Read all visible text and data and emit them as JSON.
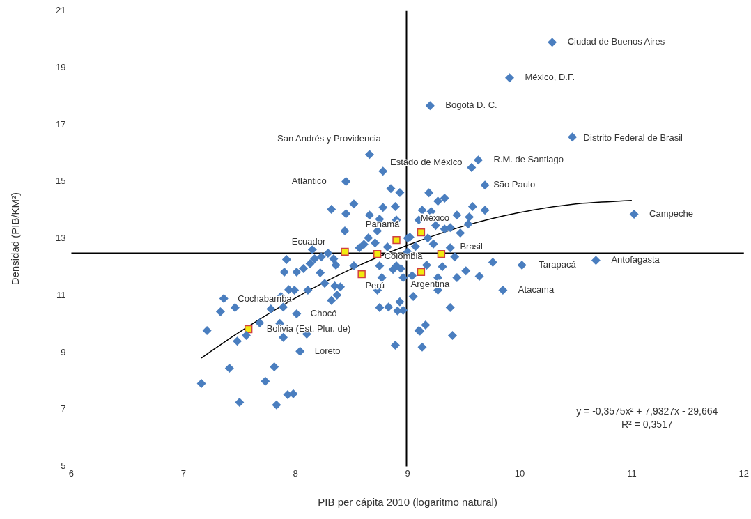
{
  "chart_data": {
    "type": "scatter",
    "xlabel": "PIB per cápita 2010 (logaritmo natural)",
    "ylabel": "Densidad (PIB/KM²)",
    "xlim": [
      6,
      12
    ],
    "xticks": [
      6,
      7,
      8,
      9,
      10,
      11,
      12
    ],
    "ylim": [
      5,
      21
    ],
    "yticks": [
      5,
      7,
      9,
      11,
      13,
      15,
      17,
      19,
      21
    ],
    "grid": false,
    "legend": false,
    "series": [
      {
        "type": "scatter",
        "marker": "diamond",
        "color": "#4a7ebf",
        "x": [
          10.29,
          9.91,
          9.2,
          10.47,
          9.63,
          9.57,
          9.69,
          11.02,
          10.68,
          10.02,
          9.85,
          8.66,
          8.78,
          8.45,
          8.85,
          8.93,
          8.32,
          8.52,
          8.45,
          8.78,
          8.89,
          8.66,
          8.75,
          8.9,
          8.44,
          8.73,
          8.65,
          8.57,
          8.71,
          9.0,
          8.15,
          7.92,
          7.9,
          8.01,
          8.07,
          8.13,
          8.17,
          8.23,
          8.29,
          8.34,
          8.36,
          8.22,
          8.26,
          8.35,
          8.4,
          8.52,
          8.75,
          8.87,
          8.94,
          8.77,
          8.96,
          8.73,
          9.04,
          8.11,
          9.19,
          9.27,
          9.33,
          9.13,
          9.21,
          9.58,
          9.69,
          9.44,
          9.55,
          9.1,
          9.25,
          9.33,
          9.38,
          9.54,
          9.47,
          9.02,
          9.18,
          9.23,
          9.38,
          9.42,
          9.17,
          9.31,
          9.52,
          9.44,
          9.64,
          9.76,
          9.27,
          9.27,
          8.9,
          7.36,
          7.33,
          7.46,
          7.21,
          7.68,
          7.78,
          7.89,
          7.87,
          7.94,
          7.99,
          7.86,
          8.01,
          7.48,
          7.56,
          7.89,
          8.1,
          8.04,
          7.41,
          7.81,
          7.16,
          7.73,
          7.93,
          7.98,
          7.5,
          7.83,
          8.37,
          8.32,
          8.75,
          8.83,
          8.93,
          8.91,
          8.96,
          9.05,
          8.89,
          9.1,
          9.13,
          9.38,
          9.16,
          9.11,
          9.4,
          8.61,
          8.82,
          9.07,
          9.0
        ],
        "values": [
          19.9,
          18.65,
          17.67,
          16.57,
          15.76,
          15.5,
          14.88,
          13.86,
          12.24,
          12.07,
          11.19,
          15.96,
          15.37,
          15.01,
          14.76,
          14.62,
          14.03,
          14.22,
          13.88,
          14.1,
          14.13,
          13.83,
          13.69,
          13.66,
          13.27,
          13.27,
          13.03,
          12.68,
          12.85,
          13.02,
          12.61,
          12.27,
          11.83,
          11.83,
          11.95,
          12.12,
          12.29,
          12.36,
          12.49,
          12.29,
          12.07,
          11.8,
          11.43,
          11.34,
          11.31,
          12.05,
          12.05,
          11.92,
          11.95,
          11.63,
          11.63,
          11.19,
          11.7,
          11.19,
          14.61,
          14.32,
          14.42,
          14.0,
          13.95,
          14.13,
          14.0,
          13.83,
          13.76,
          13.66,
          13.46,
          13.34,
          13.39,
          13.51,
          13.2,
          13.05,
          13.02,
          12.81,
          12.68,
          12.36,
          12.07,
          12.02,
          11.87,
          11.63,
          11.68,
          12.17,
          11.63,
          11.19,
          12.05,
          10.9,
          10.43,
          10.58,
          9.77,
          10.04,
          10.53,
          10.6,
          10.97,
          11.21,
          11.19,
          10.02,
          10.36,
          9.4,
          9.6,
          9.53,
          9.65,
          9.04,
          8.45,
          8.5,
          7.91,
          7.99,
          7.52,
          7.55,
          7.25,
          7.16,
          11.02,
          10.83,
          10.58,
          10.6,
          10.78,
          10.46,
          10.48,
          10.97,
          9.26,
          9.77,
          9.19,
          10.58,
          9.97,
          9.75,
          9.6,
          12.8,
          12.71,
          12.73,
          12.54
        ]
      },
      {
        "type": "scatter",
        "marker": "square",
        "color": "#f2ea0f",
        "x": [
          8.44,
          8.73,
          8.9,
          9.12,
          9.3,
          9.12,
          8.59,
          7.58
        ],
        "values": [
          12.54,
          12.46,
          12.95,
          13.22,
          12.46,
          11.83,
          11.75,
          9.82
        ]
      },
      {
        "type": "line",
        "marker": "none",
        "line_style": "solid",
        "color": "#000000",
        "x": [
          7.16,
          7.5,
          8,
          8.5,
          9,
          9.5,
          10,
          10.5,
          11
        ],
        "values": [
          8.81,
          9.72,
          10.92,
          11.94,
          12.77,
          13.44,
          13.92,
          14.22,
          14.34
        ]
      }
    ],
    "ref_lines": [
      {
        "axis": "x",
        "value": 8.99,
        "color": "#000000"
      },
      {
        "axis": "y",
        "value": 12.49,
        "color": "#000000"
      }
    ],
    "annotations": [
      {
        "text": "Ciudad de Buenos Aires",
        "x": 10.29,
        "y": 19.9
      },
      {
        "text": "México, D.F.",
        "x": 9.91,
        "y": 18.65
      },
      {
        "text": "Bogotá D. C.",
        "x": 9.2,
        "y": 17.67
      },
      {
        "text": "Distrito Federal de Brasil",
        "x": 10.47,
        "y": 16.57
      },
      {
        "text": "R.M. de Santiago",
        "x": 9.63,
        "y": 15.76
      },
      {
        "text": "São Paulo",
        "x": 9.69,
        "y": 14.88
      },
      {
        "text": "Campeche",
        "x": 11.02,
        "y": 13.86
      },
      {
        "text": "Antofagasta",
        "x": 10.68,
        "y": 12.24
      },
      {
        "text": "Tarapacá",
        "x": 10.02,
        "y": 12.07
      },
      {
        "text": "Atacama",
        "x": 9.85,
        "y": 11.19
      },
      {
        "text": "San Andrés y Providencia",
        "x": 8.66,
        "y": 15.96
      },
      {
        "text": "Estado de México",
        "x": 8.78,
        "y": 15.37
      },
      {
        "text": "Atlántico",
        "x": 8.45,
        "y": 15.01
      },
      {
        "text": "Ecuador",
        "x": 8.44,
        "y": 12.54
      },
      {
        "text": "Panamá",
        "x": 8.9,
        "y": 12.95
      },
      {
        "text": "México",
        "x": 9.12,
        "y": 13.22
      },
      {
        "text": "Colombia",
        "x": 8.73,
        "y": 12.46
      },
      {
        "text": "Brasil",
        "x": 9.3,
        "y": 12.46
      },
      {
        "text": "Argentina",
        "x": 9.12,
        "y": 11.83
      },
      {
        "text": "Perú",
        "x": 8.59,
        "y": 11.75
      },
      {
        "text": "Cochabamba",
        "x": 7.36,
        "y": 10.9
      },
      {
        "text": "Chocó",
        "x": 8.01,
        "y": 10.36
      },
      {
        "text": "Bolivia (Est. Plur. de)",
        "x": 7.58,
        "y": 9.82
      },
      {
        "text": "Loreto",
        "x": 8.04,
        "y": 9.04
      },
      "y = -0,3575x² + 7,9327x - 29,664",
      "R² = 0,3517"
    ]
  }
}
